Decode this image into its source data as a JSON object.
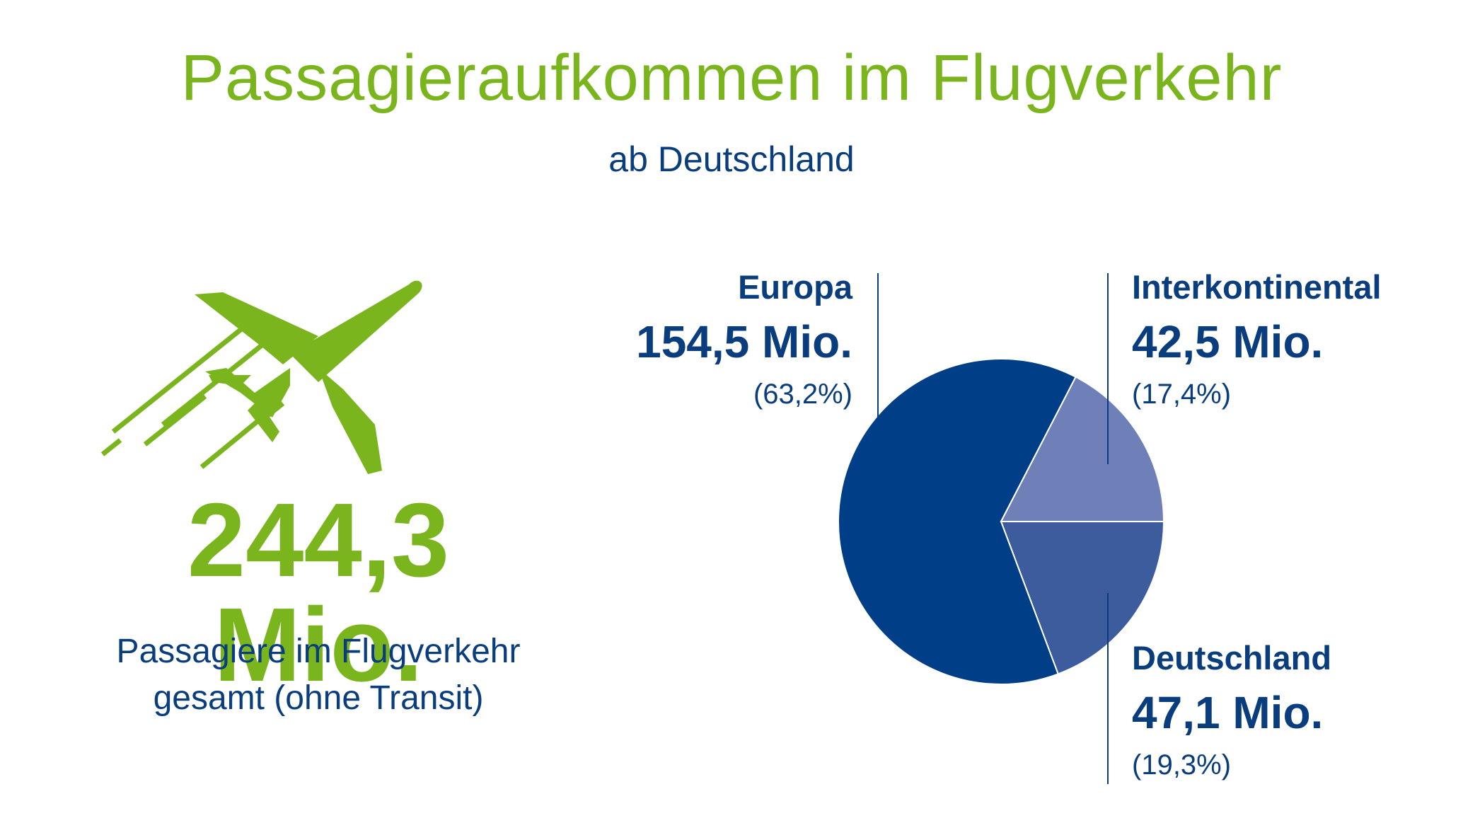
{
  "title": "Passagieraufkommen im Flugverkehr",
  "subtitle": "ab Deutschland",
  "total": {
    "value": "244,3 Mio.",
    "desc_line1": "Passagiere im Flugverkehr",
    "desc_line2": "gesamt (ohne Transit)"
  },
  "colors": {
    "green": "#7ab51d",
    "navy": "#0a3d7d",
    "europa": "#003f87",
    "interkontinental": "#6f80b8",
    "deutschland": "#3d5c9e"
  },
  "icons": [
    "airplane-icon"
  ],
  "chart_data": {
    "type": "pie",
    "slices": [
      {
        "label": "Europa",
        "value": 154.5,
        "value_text": "154,5 Mio.",
        "percent": 63.2,
        "percent_text": "(63,2%)",
        "color": "#003f87"
      },
      {
        "label": "Interkontinental",
        "value": 42.5,
        "value_text": "42,5 Mio.",
        "percent": 17.4,
        "percent_text": "(17,4%)",
        "color": "#6f80b8"
      },
      {
        "label": "Deutschland",
        "value": 47.1,
        "value_text": "47,1 Mio.",
        "percent": 19.3,
        "percent_text": "(19,3%)",
        "color": "#3d5c9e"
      }
    ]
  }
}
